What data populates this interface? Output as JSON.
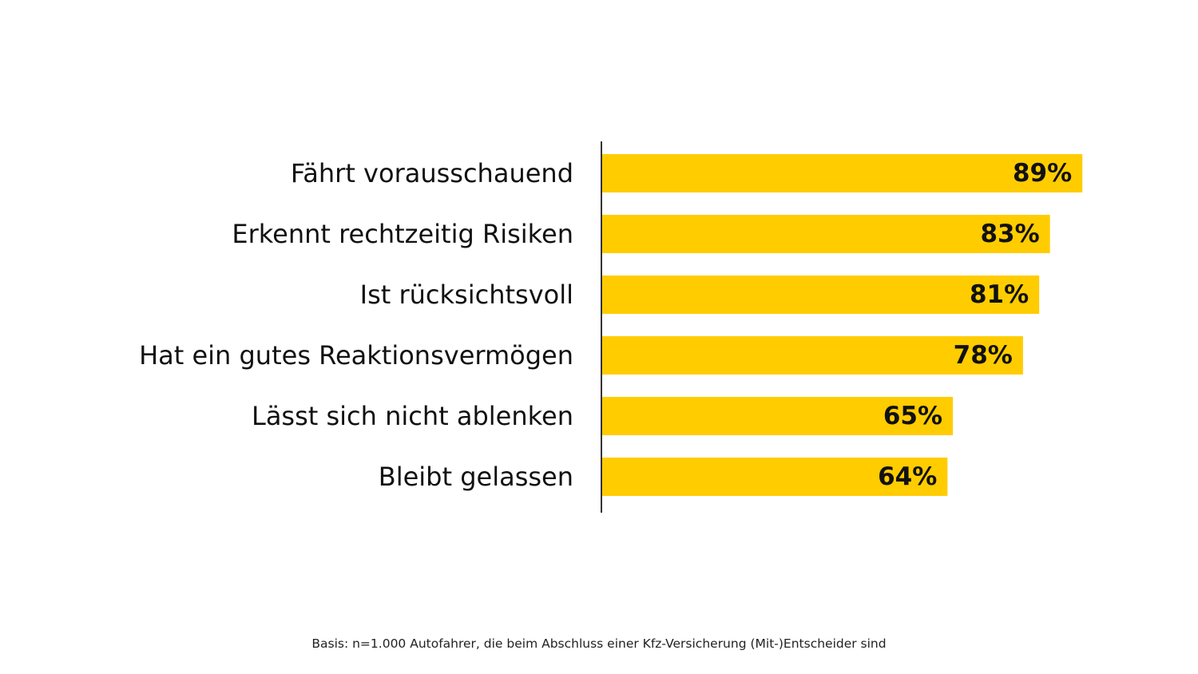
{
  "chart_data": {
    "type": "bar",
    "orientation": "horizontal",
    "categories": [
      "Fährt vorausschauend",
      "Erkennt rechtzeitig Risiken",
      "Ist rücksichtsvoll",
      "Hat ein gutes Reaktionsvermögen",
      "Lässt sich nicht ablenken",
      "Bleibt gelassen"
    ],
    "values": [
      89,
      83,
      81,
      78,
      65,
      64
    ],
    "value_labels": [
      "89%",
      "83%",
      "81%",
      "78%",
      "65%",
      "64%"
    ],
    "unit": "%",
    "bar_color": "#FFCC00",
    "axis_color": "#333333",
    "grid": false,
    "legend": "none"
  },
  "footnote": "Basis: n=1.000 Autofahrer, die beim Abschluss einer Kfz-Versicherung (Mit-)Entscheider sind"
}
